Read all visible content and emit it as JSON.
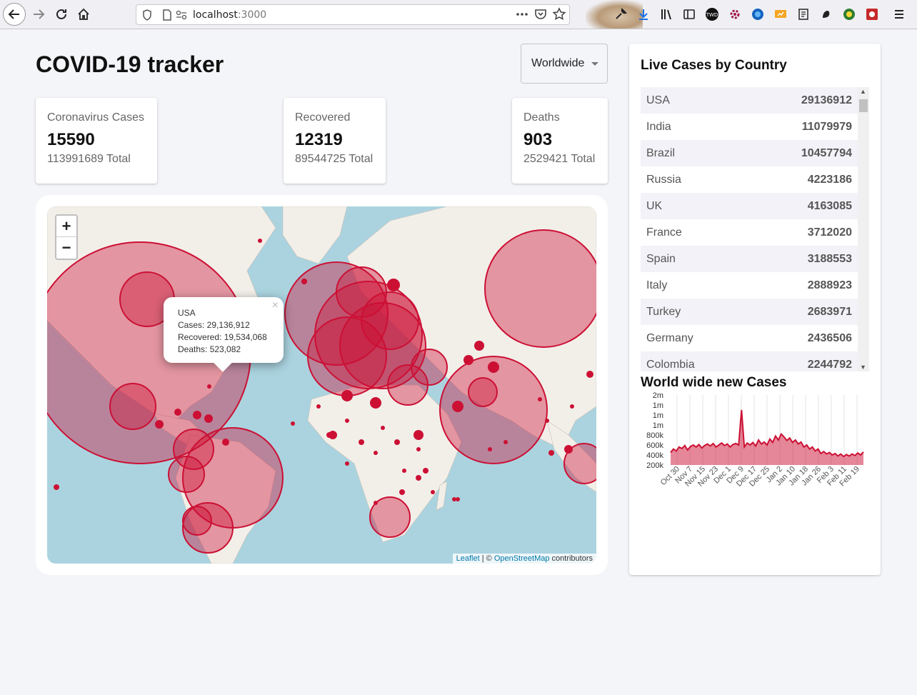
{
  "browser": {
    "url_host": "localhost",
    "url_port": ":3000"
  },
  "header": {
    "title": "COVID-19 tracker",
    "country_select": "Worldwide"
  },
  "stats": {
    "cases": {
      "label": "Coronavirus Cases",
      "today": "15590",
      "total": "113991689 Total"
    },
    "recovered": {
      "label": "Recovered",
      "today": "12319",
      "total": "89544725 Total"
    },
    "deaths": {
      "label": "Deaths",
      "today": "903",
      "total": "2529421 Total"
    }
  },
  "map": {
    "zoom_in": "+",
    "zoom_out": "−",
    "popup": {
      "country": "USA",
      "cases": "Cases: 29,136,912",
      "recovered": "Recovered: 19,534,068",
      "deaths": "Deaths: 523,082",
      "close": "×"
    },
    "attribution": {
      "leaflet": "Leaflet",
      "sep": " | © ",
      "osm": "OpenStreetMap",
      "suffix": " contributors"
    },
    "circle_color": "#cc1034"
  },
  "panel": {
    "title": "Live Cases by Country",
    "countries": [
      {
        "name": "USA",
        "cases": "29136912"
      },
      {
        "name": "India",
        "cases": "11079979"
      },
      {
        "name": "Brazil",
        "cases": "10457794"
      },
      {
        "name": "Russia",
        "cases": "4223186"
      },
      {
        "name": "UK",
        "cases": "4163085"
      },
      {
        "name": "France",
        "cases": "3712020"
      },
      {
        "name": "Spain",
        "cases": "3188553"
      },
      {
        "name": "Italy",
        "cases": "2888923"
      },
      {
        "name": "Turkey",
        "cases": "2683971"
      },
      {
        "name": "Germany",
        "cases": "2436506"
      },
      {
        "name": "Colombia",
        "cases": "2244792"
      }
    ],
    "chart_title": "World wide new Cases"
  },
  "chart_data": {
    "type": "area",
    "title": "World wide new Cases",
    "xlabel": "",
    "ylabel": "",
    "x_ticks": [
      "Oct 30",
      "Nov 7",
      "Nov 15",
      "Nov 23",
      "Dec 1",
      "Dec 9",
      "Dec 17",
      "Dec 25",
      "Jan 2",
      "Jan 10",
      "Jan 18",
      "Jan 26",
      "Feb 3",
      "Feb 11",
      "Feb 19"
    ],
    "y_ticks": [
      "2m",
      "1m",
      "1m",
      "1m",
      "800k",
      "600k",
      "400k",
      "200k"
    ],
    "y_tick_values": [
      1600000,
      1400000,
      1200000,
      1000000,
      800000,
      600000,
      400000,
      200000
    ],
    "ylim": [
      200000,
      1600000
    ],
    "series": [
      {
        "name": "new cases",
        "color": "#cc1034",
        "fill": "rgba(204,16,52,0.5)",
        "values": [
          450000,
          520000,
          480000,
          560000,
          530000,
          590000,
          500000,
          570000,
          600000,
          560000,
          610000,
          540000,
          590000,
          620000,
          580000,
          630000,
          560000,
          600000,
          640000,
          590000,
          620000,
          560000,
          610000,
          630000,
          600000,
          1300000,
          560000,
          640000,
          600000,
          650000,
          580000,
          700000,
          620000,
          660000,
          600000,
          720000,
          650000,
          780000,
          700000,
          820000,
          760000,
          690000,
          740000,
          650000,
          700000,
          620000,
          660000,
          560000,
          600000,
          520000,
          560000,
          480000,
          520000,
          430000,
          470000,
          420000,
          450000,
          400000,
          430000,
          380000,
          420000,
          370000,
          410000,
          380000,
          420000,
          390000,
          440000,
          400000,
          460000
        ]
      }
    ]
  }
}
